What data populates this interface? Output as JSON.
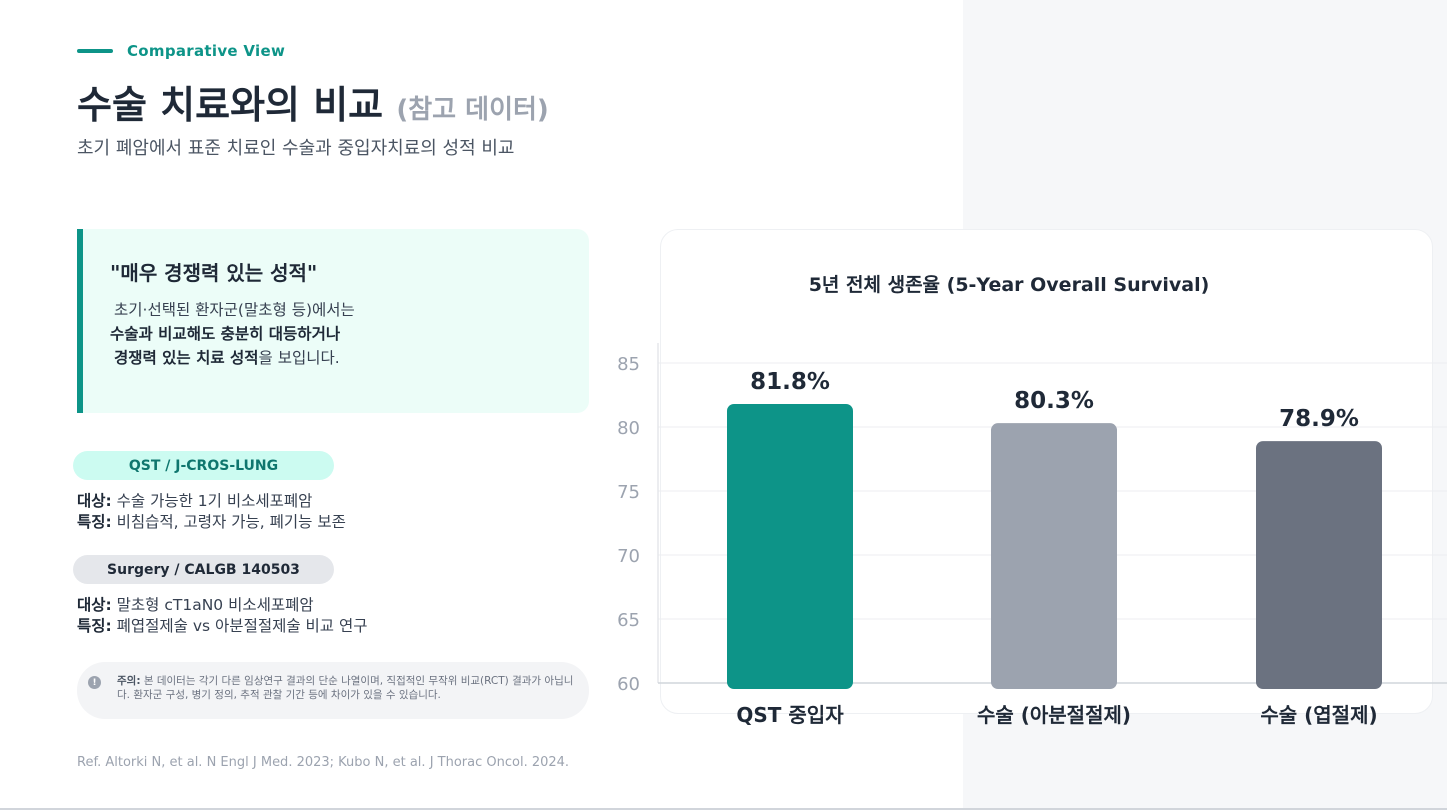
{
  "header": {
    "eyebrow": "Comparative View",
    "title": "수술 치료와의 비교",
    "title_sub": "(참고 데이터)",
    "subtitle": "초기 폐암에서 표준 치료인 수술과 중입자치료의 성적 비교"
  },
  "quote": {
    "title": "\"매우 경쟁력 있는 성적\"",
    "line1": "초기·선택된 환자군(말초형 등)에서는",
    "line2_bold": "수술과 비교해도 충분히 대등하거나",
    "line3_bold": "경쟁력 있는 치료 성적",
    "line3_rest": "을 보입니다."
  },
  "studies": {
    "qst": {
      "label": "QST / J-CROS-LUNG",
      "target_key": "대상:",
      "target_value": " 수술 가능한 1기 비소세포폐암",
      "feature_key": "특징:",
      "feature_value": " 비침습적, 고령자 가능, 폐기능 보존"
    },
    "surgery": {
      "label": "Surgery / CALGB 140503",
      "target_key": "대상:",
      "target_value": " 말초형 cT1aN0 비소세포폐암",
      "feature_key": "특징:",
      "feature_value": " 폐엽절제술 vs 아분절절제술 비교 연구"
    }
  },
  "note": {
    "icon": "!",
    "key": "주의:",
    "text": " 본 데이터는 각기 다른 임상연구 결과의 단순 나열이며, 직접적인 무작위 비교(RCT) 결과가 아닙니다. 환자군 구성, 병기 정의, 추적 관찰 기간 등에 차이가 있을 수 있습니다."
  },
  "reference": "Ref. Altorki N, et al. N Engl J Med. 2023; Kubo N, et al. J Thorac Oncol. 2024.",
  "chart_data": {
    "type": "bar",
    "title": "5년 전체 생존율 (5-Year Overall Survival)",
    "categories": [
      "QST 중입자",
      "수술 (아분절절제)",
      "수술 (엽절제)"
    ],
    "values": [
      81.8,
      80.3,
      78.9
    ],
    "data_labels": [
      "81.8%",
      "80.3%",
      "78.9%"
    ],
    "colors": [
      "#0d9488",
      "#9ca3af",
      "#6b7280"
    ],
    "ylim": [
      60,
      85
    ],
    "yticks": [
      60,
      65,
      70,
      75,
      80,
      85
    ],
    "xlabel": "",
    "ylabel": "",
    "grid": true
  }
}
